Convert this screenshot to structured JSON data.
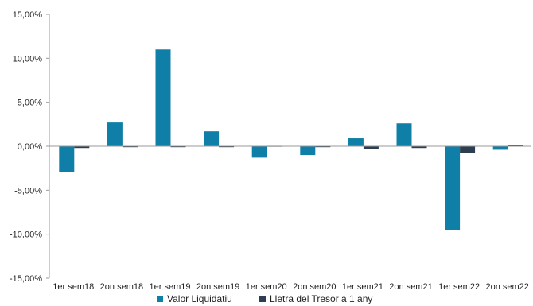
{
  "chart_data": {
    "type": "bar",
    "title": "",
    "xlabel": "",
    "ylabel": "",
    "categories": [
      "1er sem18",
      "2on sem18",
      "1er sem19",
      "2on sem19",
      "1er sem20",
      "2on sem20",
      "1er sem21",
      "2on sem21",
      "1er sem22",
      "2on sem22"
    ],
    "series": [
      {
        "name": "Valor Liquidatiu",
        "color": "#0f7fa8",
        "values": [
          -2.9,
          2.7,
          11.0,
          1.7,
          -1.3,
          -1.0,
          0.9,
          2.6,
          -9.5,
          -0.4
        ]
      },
      {
        "name": "Lletra del Tresor a 1 any",
        "color": "#2d3e50",
        "values": [
          -0.2,
          -0.1,
          -0.05,
          -0.05,
          0.05,
          -0.05,
          -0.3,
          -0.2,
          -0.8,
          0.15
        ]
      }
    ],
    "ylim": [
      -15,
      15
    ],
    "y_ticks": [
      -15,
      -10,
      -5,
      0,
      5,
      10,
      15
    ],
    "y_tick_labels": [
      "-15,00%",
      "-10,00%",
      "-5,00%",
      "0,00%",
      "5,00%",
      "10,00%",
      "15,00%"
    ],
    "grid": false,
    "legend_position": "bottom-center"
  }
}
